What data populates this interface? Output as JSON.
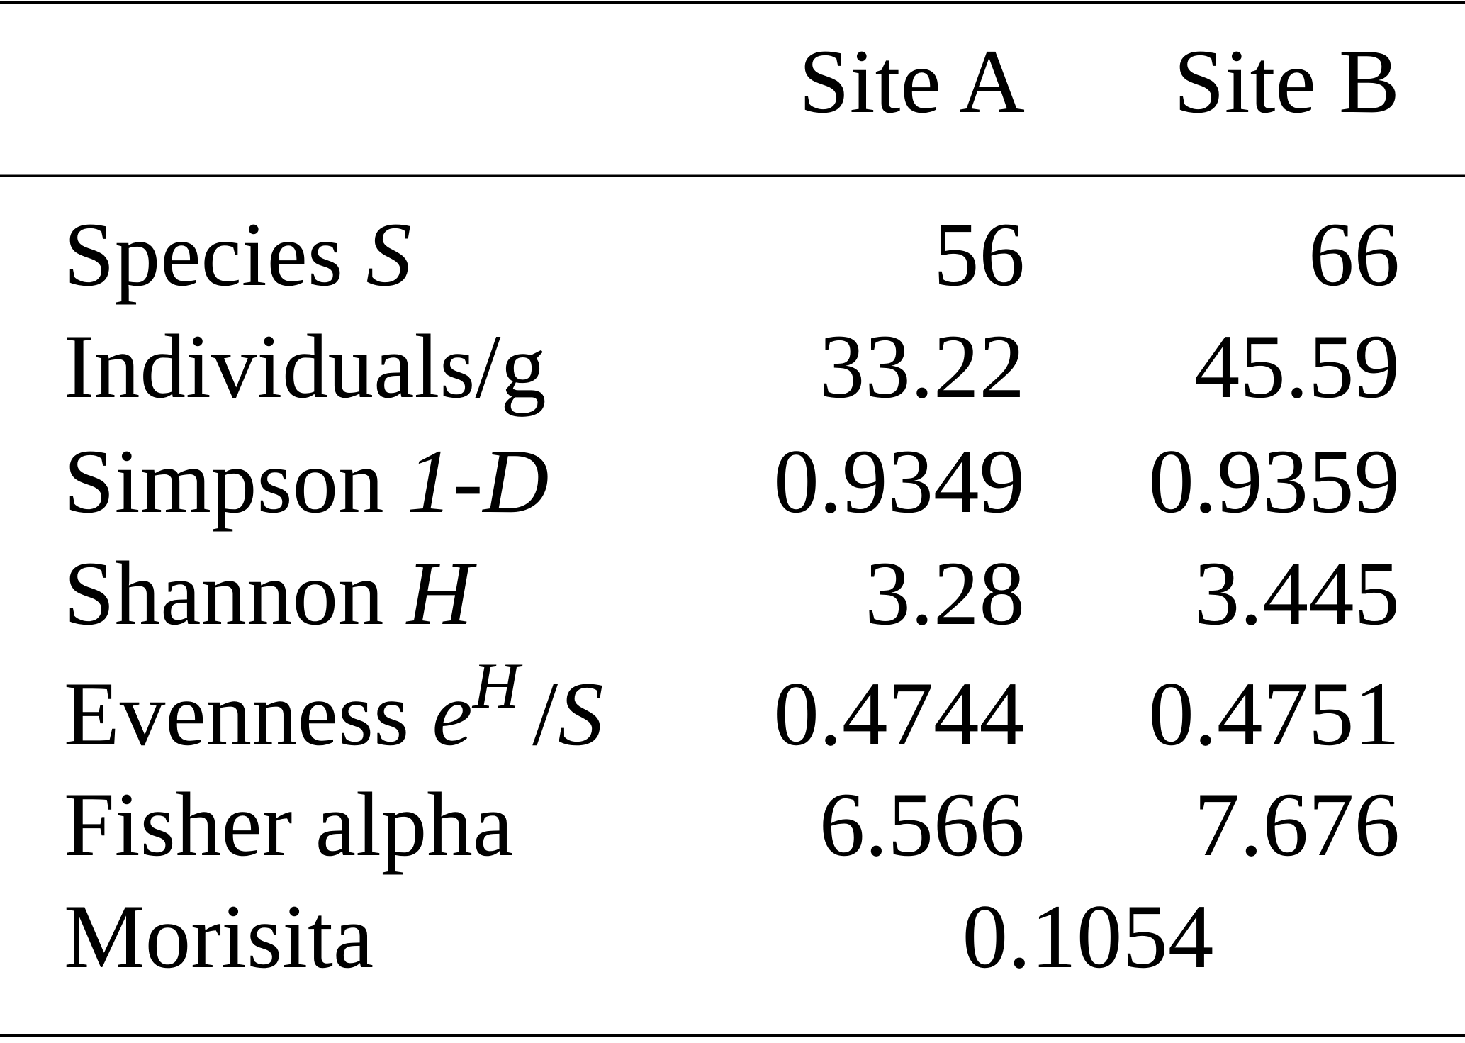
{
  "table": {
    "header": [
      "Site A",
      "Site B"
    ],
    "rows": [
      {
        "label": [
          {
            "text": "Species "
          },
          {
            "text": "S",
            "italic": true
          }
        ],
        "values": [
          "56",
          "66"
        ]
      },
      {
        "label": [
          {
            "text": "Individuals/g"
          }
        ],
        "values": [
          "33.22",
          "45.59"
        ]
      },
      {
        "label": [
          {
            "text": "Simpson "
          },
          {
            "text": "1-D",
            "italic": true
          }
        ],
        "values": [
          "0.9349",
          "0.9359"
        ]
      },
      {
        "label": [
          {
            "text": "Shannon "
          },
          {
            "text": "H",
            "italic": true
          }
        ],
        "values": [
          "3.28",
          "3.445"
        ]
      },
      {
        "label": [
          {
            "text": "Evenness "
          },
          {
            "text": "e",
            "italic": true
          },
          {
            "text": "H",
            "italic": true,
            "sup": true
          },
          {
            "text": "/"
          },
          {
            "text": "S",
            "italic": true
          }
        ],
        "values": [
          "0.4744",
          "0.4751"
        ]
      },
      {
        "label": [
          {
            "text": "Fisher alpha"
          }
        ],
        "values": [
          "6.566",
          "7.676"
        ]
      },
      {
        "label": [
          {
            "text": "Morisita"
          }
        ],
        "values": [
          "0.1054"
        ],
        "span": true
      }
    ]
  }
}
